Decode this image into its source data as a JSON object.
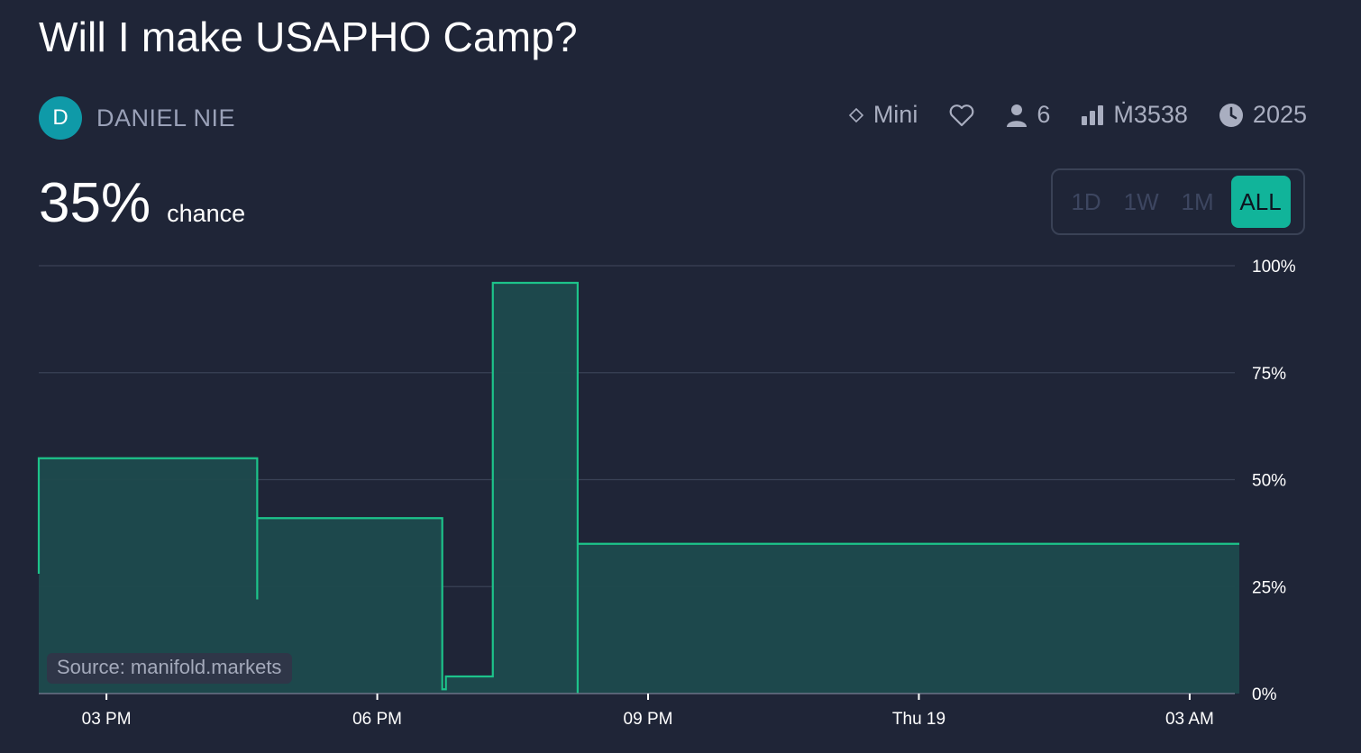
{
  "title": "Will I make USAPHO Camp?",
  "author": {
    "initial": "D",
    "name": "DANIEL NIE",
    "avatar_color": "#0f9aa8"
  },
  "stats": {
    "tier_icon": "diamond-outline-icon",
    "tier_label": "Mini",
    "like_icon": "heart-outline-icon",
    "traders_icon": "person-icon",
    "traders": "6",
    "volume_icon": "bar-chart-icon",
    "volume": "Ṁ3538",
    "close_icon": "clock-icon",
    "close_year": "2025"
  },
  "probability": {
    "value": "35%",
    "suffix": "chance"
  },
  "time_ranges": [
    "1D",
    "1W",
    "1M",
    "ALL"
  ],
  "active_time_range": "ALL",
  "source_label": "Source: manifold.markets",
  "colors": {
    "background": "#1f2537",
    "line": "#1dc38a",
    "fill": "#1d4a4d",
    "accent": "#11b49a"
  },
  "chart_data": {
    "type": "area",
    "step": true,
    "x_unit": "hours from 02:15 PM",
    "x_ticks": [
      {
        "x": 0.75,
        "label": "03 PM"
      },
      {
        "x": 3.75,
        "label": "06 PM"
      },
      {
        "x": 6.75,
        "label": "09 PM"
      },
      {
        "x": 9.75,
        "label": "Thu 19"
      },
      {
        "x": 12.75,
        "label": "03 AM"
      }
    ],
    "xlim": [
      0,
      13.25
    ],
    "ylim": [
      0,
      100
    ],
    "y_ticks": [
      {
        "y": 0,
        "label": "0%"
      },
      {
        "y": 25,
        "label": "25%"
      },
      {
        "y": 50,
        "label": "50%"
      },
      {
        "y": 75,
        "label": "75%"
      },
      {
        "y": 100,
        "label": "100%"
      }
    ],
    "points": [
      {
        "x": 0.0,
        "y": 28
      },
      {
        "x": 0.0,
        "y": 55
      },
      {
        "x": 2.42,
        "y": 22
      },
      {
        "x": 2.42,
        "y": 41
      },
      {
        "x": 4.47,
        "y": 1
      },
      {
        "x": 4.51,
        "y": 4
      },
      {
        "x": 5.03,
        "y": 77
      },
      {
        "x": 5.03,
        "y": 96
      },
      {
        "x": 5.06,
        "y": 96
      },
      {
        "x": 5.97,
        "y": 0
      },
      {
        "x": 5.97,
        "y": 35
      },
      {
        "x": 13.3,
        "y": 35
      }
    ],
    "grid": true,
    "y_axis_position": "right"
  }
}
